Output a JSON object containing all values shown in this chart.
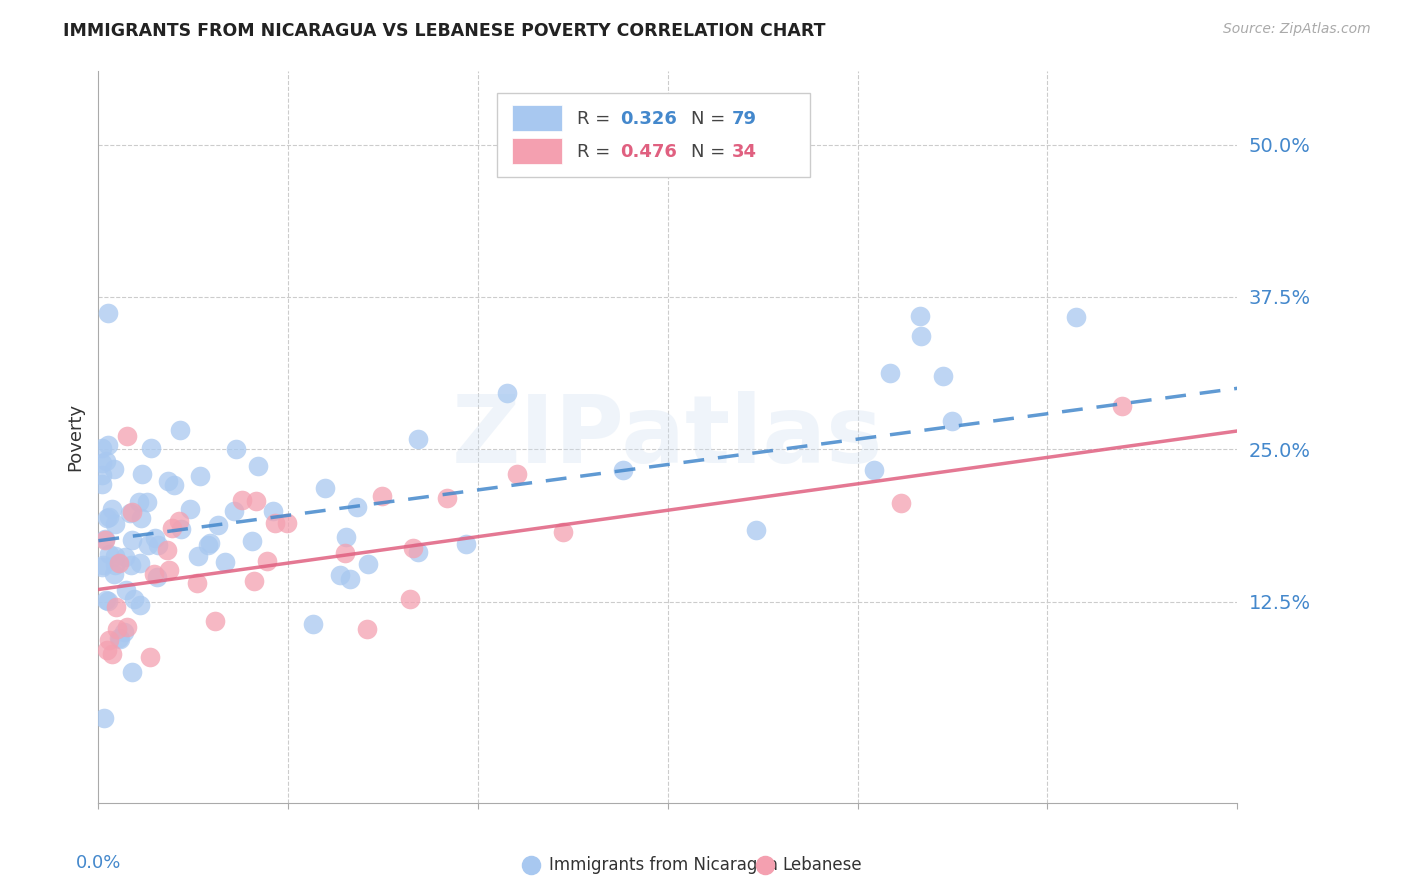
{
  "title": "IMMIGRANTS FROM NICARAGUA VS LEBANESE POVERTY CORRELATION CHART",
  "source": "Source: ZipAtlas.com",
  "ylabel": "Poverty",
  "xlim": [
    0.0,
    0.3
  ],
  "ylim": [
    -0.04,
    0.56
  ],
  "legend_r1": "R = 0.326",
  "legend_n1": "N = 79",
  "legend_r2": "R = 0.476",
  "legend_n2": "N = 34",
  "series1_color": "#a8c8f0",
  "series2_color": "#f4a0b0",
  "trendline1_color": "#4488cc",
  "trendline2_color": "#e06080",
  "watermark": "ZIPatlas",
  "background_color": "#ffffff",
  "grid_color": "#cccccc",
  "title_color": "#222222",
  "axis_label_color": "#4488cc",
  "ytick_vals": [
    0.0,
    0.125,
    0.25,
    0.375,
    0.5
  ],
  "ytick_labels": [
    "",
    "12.5%",
    "25.0%",
    "37.5%",
    "50.0%"
  ],
  "trendline1_x0": 0.0,
  "trendline1_y0": 0.175,
  "trendline1_x1": 0.3,
  "trendline1_y1": 0.3,
  "trendline2_x0": 0.0,
  "trendline2_y0": 0.135,
  "trendline2_x1": 0.3,
  "trendline2_y1": 0.265
}
